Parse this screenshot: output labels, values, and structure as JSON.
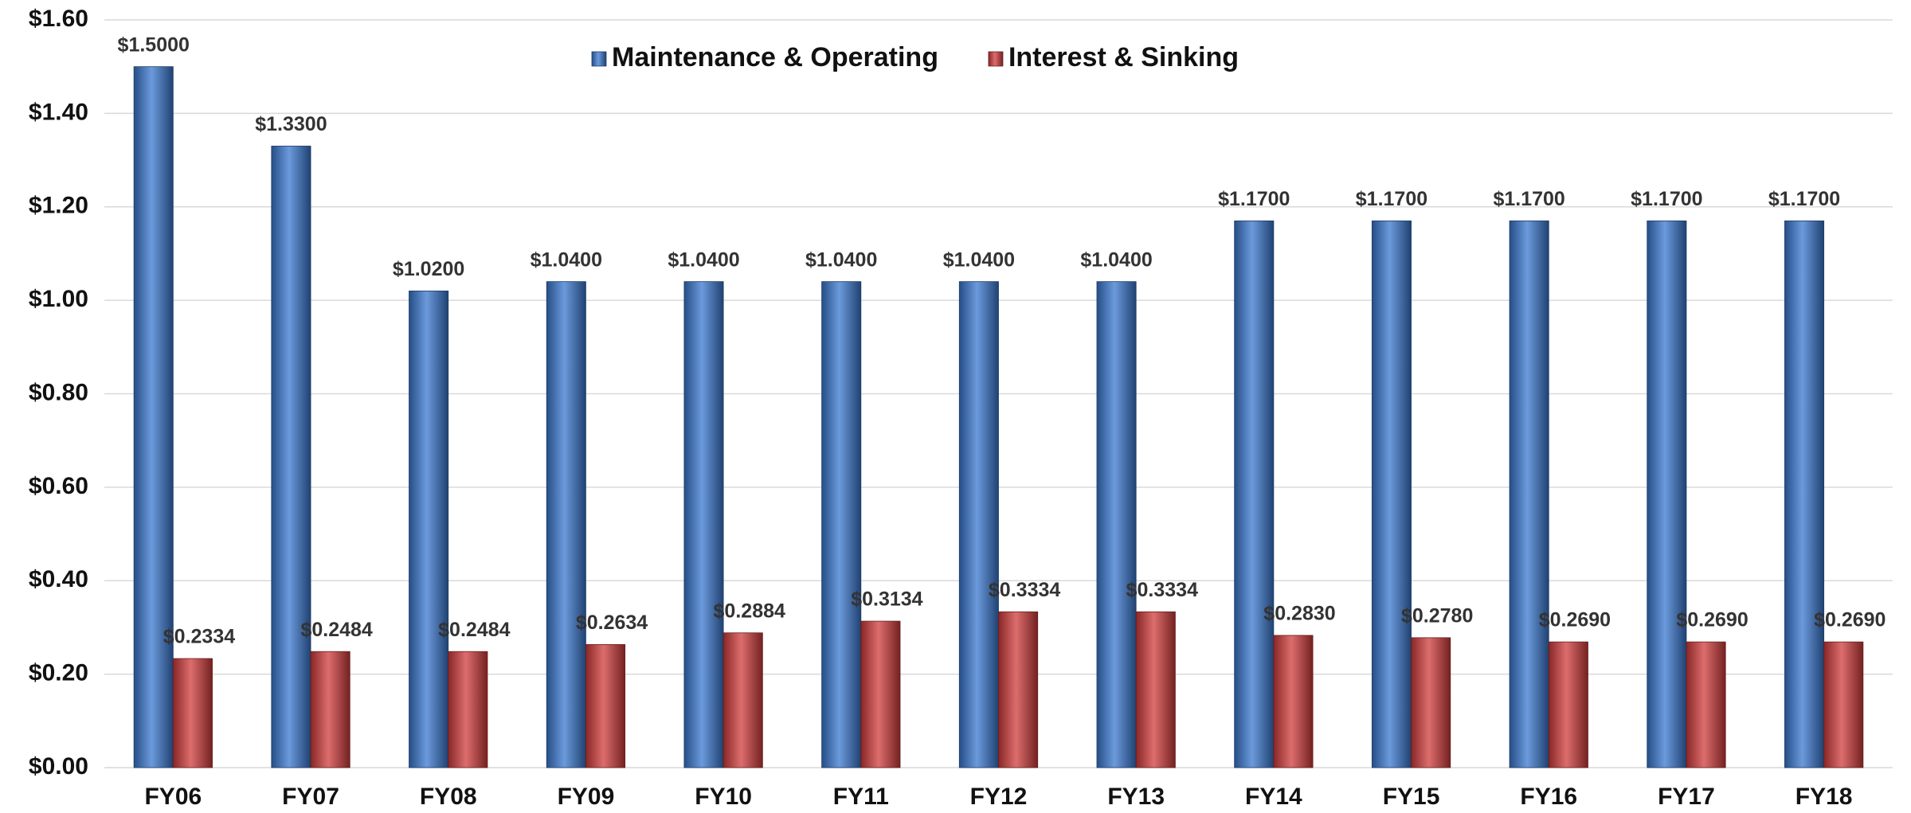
{
  "chart_data": {
    "type": "bar",
    "categories": [
      "FY06",
      "FY07",
      "FY08",
      "FY09",
      "FY10",
      "FY11",
      "FY12",
      "FY13",
      "FY14",
      "FY15",
      "FY16",
      "FY17",
      "FY18"
    ],
    "series": [
      {
        "name": "Maintenance & Operating",
        "color": "#3a78d0",
        "values": [
          1.5,
          1.33,
          1.02,
          1.04,
          1.04,
          1.04,
          1.04,
          1.04,
          1.17,
          1.17,
          1.17,
          1.17,
          1.17
        ],
        "value_labels": [
          "$1.5000",
          "$1.3300",
          "$1.0200",
          "$1.0400",
          "$1.0400",
          "$1.0400",
          "$1.0400",
          "$1.0400",
          "$1.1700",
          "$1.1700",
          "$1.1700",
          "$1.1700",
          "$1.1700"
        ]
      },
      {
        "name": "Interest & Sinking",
        "color": "#d23c3c",
        "values": [
          0.2334,
          0.2484,
          0.2484,
          0.2634,
          0.2884,
          0.3134,
          0.3334,
          0.3334,
          0.283,
          0.278,
          0.269,
          0.269,
          0.269
        ],
        "value_labels": [
          "$0.2334",
          "$0.2484",
          "$0.2484",
          "$0.2634",
          "$0.2884",
          "$0.3134",
          "$0.3334",
          "$0.3334",
          "$0.2830",
          "$0.2780",
          "$0.2690",
          "$0.2690",
          "$0.2690"
        ]
      }
    ],
    "ylim": [
      0,
      1.6
    ],
    "yticks": [
      {
        "value": 0,
        "label": "$0.00"
      },
      {
        "value": 0.2,
        "label": "$0.20"
      },
      {
        "value": 0.4,
        "label": "$0.40"
      },
      {
        "value": 0.6,
        "label": "$0.60"
      },
      {
        "value": 0.8,
        "label": "$0.80"
      },
      {
        "value": 1.0,
        "label": "$1.00"
      },
      {
        "value": 1.2,
        "label": "$1.20"
      },
      {
        "value": 1.4,
        "label": "$1.40"
      },
      {
        "value": 1.6,
        "label": "$1.60"
      }
    ],
    "grid": true,
    "legend": "top"
  }
}
